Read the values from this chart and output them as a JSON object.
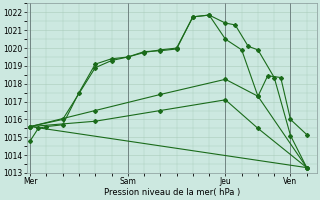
{
  "background_color": "#cce8e0",
  "grid_color": "#aaccbb",
  "line_color": "#1a6b1a",
  "xtick_labels": [
    "Mer",
    "Sam",
    "Jeu",
    "Ven"
  ],
  "xtick_positions": [
    0,
    3,
    6,
    8
  ],
  "xlabel": "Pression niveau de la mer( hPa )",
  "ylim": [
    1013,
    1022.5
  ],
  "xlim": [
    -0.1,
    8.8
  ],
  "yticks": [
    1013,
    1014,
    1015,
    1016,
    1017,
    1018,
    1019,
    1020,
    1021,
    1022
  ],
  "line1_x": [
    0,
    0.25,
    0.5,
    1.0,
    1.5,
    2.0,
    2.5,
    3.0,
    3.5,
    4.0,
    4.5,
    5.0,
    5.5,
    6.0,
    6.3,
    6.7,
    7.0,
    7.5,
    8.0,
    8.5
  ],
  "line1_y": [
    1014.8,
    1015.5,
    1015.6,
    1015.7,
    1017.5,
    1019.1,
    1019.4,
    1019.5,
    1019.8,
    1019.85,
    1019.95,
    1021.75,
    1021.85,
    1021.4,
    1021.3,
    1020.1,
    1019.9,
    1018.35,
    1015.1,
    1013.3
  ],
  "line2_x": [
    0,
    1.0,
    2.0,
    2.5,
    3.0,
    3.5,
    4.0,
    4.5,
    5.0,
    5.5,
    6.0,
    6.5,
    7.0,
    7.3,
    7.7,
    8.0,
    8.5
  ],
  "line2_y": [
    1015.6,
    1016.0,
    1018.9,
    1019.3,
    1019.5,
    1019.75,
    1019.9,
    1020.0,
    1021.75,
    1021.85,
    1020.5,
    1019.9,
    1017.3,
    1018.45,
    1018.35,
    1016.0,
    1015.15
  ],
  "line3_x": [
    0,
    2.0,
    4.0,
    6.0,
    7.0,
    8.5
  ],
  "line3_y": [
    1015.6,
    1016.5,
    1017.4,
    1018.25,
    1017.3,
    1013.3
  ],
  "line4_x": [
    0,
    2.0,
    4.0,
    6.0,
    7.0,
    8.5
  ],
  "line4_y": [
    1015.6,
    1015.9,
    1016.5,
    1017.1,
    1015.5,
    1013.3
  ],
  "line5_x": [
    0,
    8.5
  ],
  "line5_y": [
    1015.6,
    1013.3
  ]
}
